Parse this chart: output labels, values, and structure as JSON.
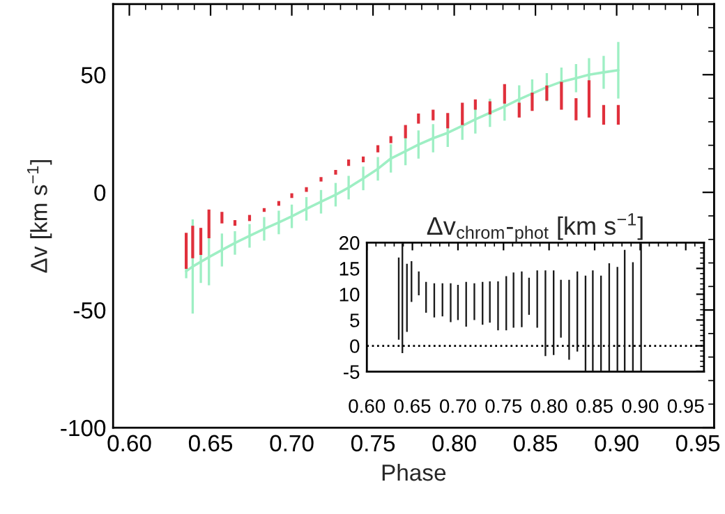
{
  "chart_data": [
    {
      "type": "line",
      "xlabel": "Phase",
      "ylabel": "Δv [km s$^{−1}$]",
      "xlim": [
        0.59,
        0.96
      ],
      "ylim": [
        -100,
        80
      ],
      "xticks": [
        {
          "value": 0.6,
          "label": "0.60"
        },
        {
          "value": 0.65,
          "label": "0.65"
        },
        {
          "value": 0.7,
          "label": "0.70"
        },
        {
          "value": 0.75,
          "label": "0.75"
        },
        {
          "value": 0.8,
          "label": "0.80"
        },
        {
          "value": 0.85,
          "label": "0.85"
        },
        {
          "value": 0.9,
          "label": "0.90"
        },
        {
          "value": 0.95,
          "label": "0.95"
        }
      ],
      "yticks": [
        -100,
        -50,
        0,
        50
      ],
      "grid": false,
      "legend": false,
      "series": [
        {
          "type": "bar",
          "color": "#e0303c",
          "x": [
            0.635,
            0.639,
            0.644,
            0.649,
            0.657,
            0.665,
            0.674,
            0.683,
            0.692,
            0.7,
            0.709,
            0.718,
            0.727,
            0.735,
            0.744,
            0.753,
            0.761,
            0.77,
            0.778,
            0.787,
            0.796,
            0.805,
            0.813,
            0.822,
            0.831,
            0.84,
            0.848,
            0.857,
            0.866,
            0.875,
            0.883,
            0.892,
            0.901
          ],
          "base": [
            -32.5,
            -28,
            -26.6,
            -19.5,
            -13.2,
            -14.2,
            -12.2,
            -8.3,
            -5.7,
            -2.4,
            0.2,
            4.6,
            7.5,
            11.2,
            12.8,
            17,
            20.9,
            23,
            29.2,
            30.6,
            27.2,
            28.6,
            35.1,
            33.1,
            37.7,
            31.8,
            34.6,
            39,
            35.1,
            30.6,
            31.8,
            28.8,
            28.8
          ],
          "values": [
            15.3,
            13.8,
            11.5,
            12.2,
            4.9,
            2.4,
            2.6,
            1.6,
            2,
            2,
            2,
            1.9,
            2,
            2.8,
            2.4,
            3,
            3,
            5.6,
            4.3,
            4.5,
            6.5,
            9.5,
            4.4,
            5.6,
            8.3,
            6.3,
            7.8,
            6.4,
            11.9,
            9.4,
            15.8,
            8.3,
            8.3
          ]
        },
        {
          "color": "#9eefc4",
          "x": [
            0.635,
            0.639,
            0.644,
            0.649,
            0.657,
            0.665,
            0.674,
            0.683,
            0.692,
            0.7,
            0.709,
            0.718,
            0.727,
            0.735,
            0.744,
            0.753,
            0.761,
            0.77,
            0.778,
            0.787,
            0.796,
            0.805,
            0.813,
            0.822,
            0.831,
            0.84,
            0.848,
            0.857,
            0.866,
            0.875,
            0.883,
            0.892,
            0.901
          ],
          "values": [
            -33.5,
            -31.5,
            -29.5,
            -27.5,
            -24.5,
            -21.5,
            -18.5,
            -15.5,
            -12.8,
            -10.2,
            -7,
            -4,
            -1,
            2,
            5.9,
            10,
            14.4,
            17.5,
            20.3,
            23,
            25.3,
            28.3,
            31,
            33.8,
            36.5,
            39.5,
            42,
            44.7,
            47,
            48.5,
            50,
            51,
            51.9
          ],
          "errors": [
            3,
            20,
            9,
            12,
            7,
            5,
            5,
            5,
            5,
            5,
            5,
            5,
            5,
            5,
            5,
            5,
            6,
            6,
            6,
            6,
            6,
            6,
            6,
            6,
            6,
            6,
            6,
            6,
            6,
            6,
            7,
            7,
            12
          ]
        }
      ]
    },
    {
      "type": "bar",
      "title": "Δv$_{chrom}$-$_{phot}$ [km s$^{−1}$]",
      "xlim": [
        0.6,
        0.97
      ],
      "ylim": [
        -5,
        20
      ],
      "xticks": [
        {
          "value": 0.6,
          "label": "0.60"
        },
        {
          "value": 0.65,
          "label": "0.65"
        },
        {
          "value": 0.7,
          "label": "0.70"
        },
        {
          "value": 0.75,
          "label": "0.75"
        },
        {
          "value": 0.8,
          "label": "0.80"
        },
        {
          "value": 0.85,
          "label": "0.85"
        },
        {
          "value": 0.9,
          "label": "0.90"
        },
        {
          "value": 0.95,
          "label": "0.95"
        }
      ],
      "yticks": [
        -5,
        0,
        5,
        10,
        15,
        20
      ],
      "grid": false,
      "ref_lines": [
        {
          "axis": "y",
          "value": 0,
          "color": "#000000",
          "line_style": "dotted"
        }
      ],
      "series": [
        {
          "color": "#1a1a1a",
          "x": [
            0.635,
            0.639,
            0.644,
            0.649,
            0.657,
            0.665,
            0.674,
            0.683,
            0.692,
            0.7,
            0.709,
            0.718,
            0.727,
            0.735,
            0.744,
            0.753,
            0.761,
            0.77,
            0.778,
            0.787,
            0.796,
            0.805,
            0.813,
            0.822,
            0.831,
            0.84,
            0.848,
            0.857,
            0.866,
            0.875,
            0.883,
            0.892,
            0.901
          ],
          "base": [
            1.2,
            -1.4,
            2.7,
            8.5,
            9.8,
            6.4,
            5.5,
            5.7,
            4.6,
            5,
            3.7,
            5,
            4.1,
            4.5,
            3,
            3,
            3.5,
            3.6,
            6,
            3.5,
            -2,
            -1.8,
            1.6,
            -2.7,
            -1.1,
            -5,
            -5,
            -5,
            -5,
            -5,
            -5,
            -5,
            -5
          ],
          "values": [
            15.9,
            21.4,
            13.2,
            7.9,
            4.6,
            6,
            6.6,
            6.4,
            7.5,
            6.8,
            8.7,
            7.1,
            8.3,
            8,
            9.5,
            10.5,
            10.7,
            10.8,
            7.2,
            11.1,
            16.6,
            16.4,
            11.2,
            15.5,
            15.5,
            18.6,
            19.6,
            18.6,
            21,
            20.3,
            23.6,
            21.2,
            25
          ]
        }
      ]
    }
  ]
}
